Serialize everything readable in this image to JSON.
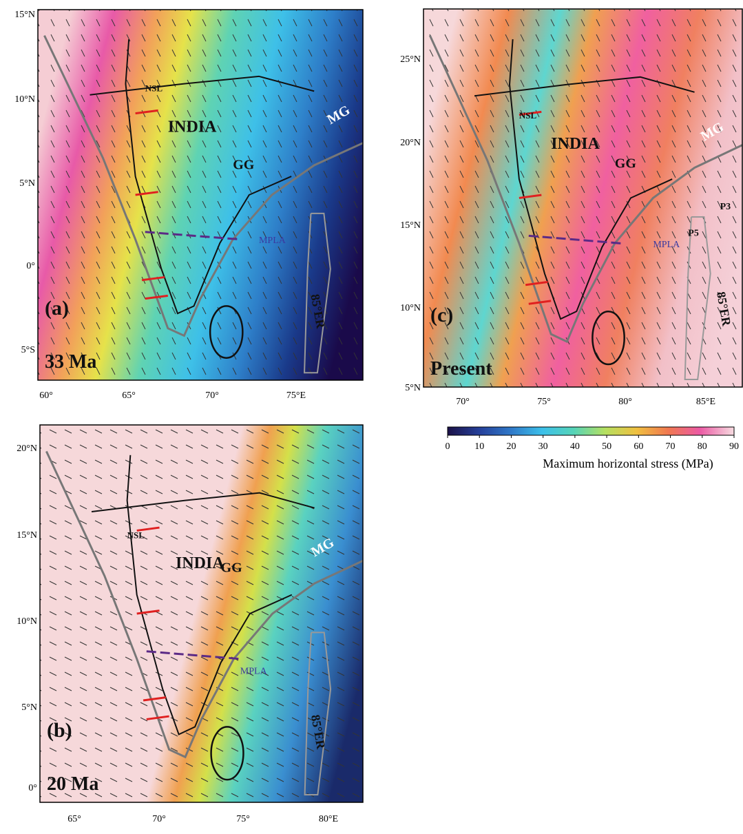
{
  "panels": [
    {
      "label": "(a)",
      "age": "33 Ma",
      "lat_labels": [
        "15°N",
        "10°N",
        "5°N",
        "0°",
        "5°S"
      ],
      "lon_labels": [
        "60°",
        "65°",
        "70°",
        "75°E"
      ],
      "annotations": {
        "india": "INDIA",
        "nsl": "NSL",
        "mg": "MG",
        "gg": "GG",
        "mpla": "MPLA",
        "er": "85°ER"
      }
    },
    {
      "label": "(b)",
      "age": "20 Ma",
      "lat_labels": [
        "20°N",
        "15°N",
        "10°N",
        "5°N",
        "0°"
      ],
      "lon_labels": [
        "65°",
        "70°",
        "75°",
        "80°E"
      ],
      "annotations": {
        "india": "INDIA",
        "nsl": "NSL",
        "mg": "MG",
        "gg": "GG",
        "mpla": "MPLA",
        "er": "85°ER"
      }
    },
    {
      "label": "(c)",
      "age": "Present",
      "lat_labels": [
        "25°N",
        "20°N",
        "15°N",
        "10°N",
        "5°N"
      ],
      "lon_labels": [
        "70°",
        "75°",
        "80°",
        "85°E"
      ],
      "annotations": {
        "india": "INDIA",
        "nsl": "NSL",
        "mg": "MG",
        "gg": "GG",
        "mpla": "MPLA",
        "er": "85°ER",
        "p3": "P3",
        "p5": "P5"
      }
    }
  ],
  "colorbar": {
    "ticks": [
      0,
      10,
      20,
      30,
      40,
      50,
      60,
      70,
      80,
      90
    ],
    "label": "Maximum horizontal stress (MPa)"
  }
}
